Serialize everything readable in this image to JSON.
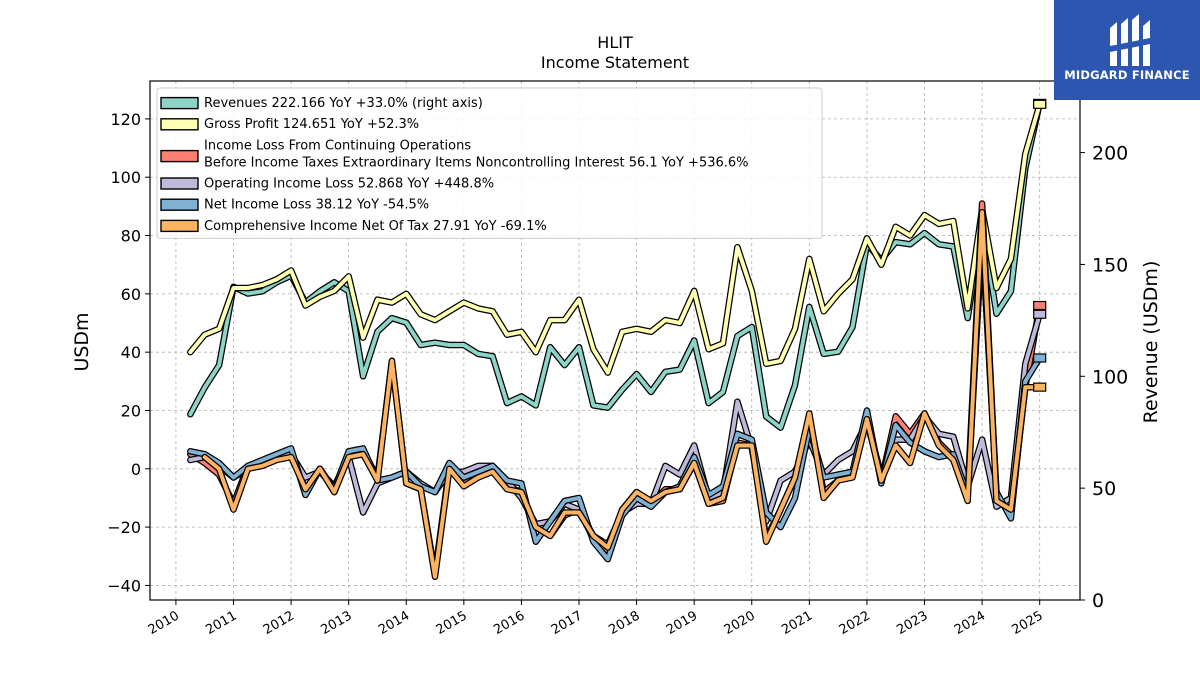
{
  "chart_data": {
    "type": "line",
    "title": "HLIT",
    "subtitle": "Income Statement",
    "ylabel_left": "USDm",
    "ylabel_right": "Revenue (USDm)",
    "ylim_left": [
      -45,
      133
    ],
    "ylim_right": [
      0,
      232
    ],
    "yticks_left": [
      -40,
      -20,
      0,
      20,
      40,
      60,
      80,
      100,
      120
    ],
    "yticks_right": [
      0,
      50,
      100,
      150,
      200
    ],
    "xlim": [
      2009.55,
      2025.7
    ],
    "xticks": [
      2010,
      2011,
      2012,
      2013,
      2014,
      2015,
      2016,
      2017,
      2018,
      2019,
      2020,
      2021,
      2022,
      2023,
      2024,
      2025
    ],
    "grid": true,
    "legend_position": "top-left",
    "series": [
      {
        "name": "Revenues",
        "legend_label": "Revenues  222.166 YoY +33.0% (right axis)",
        "axis": "right",
        "color": "#8dd3c7",
        "x": [
          2010.25,
          2010.5,
          2010.75,
          2011.0,
          2011.25,
          2011.5,
          2011.75,
          2012.0,
          2012.25,
          2012.5,
          2012.75,
          2013.0,
          2013.25,
          2013.5,
          2013.75,
          2014.0,
          2014.25,
          2014.5,
          2014.75,
          2015.0,
          2015.25,
          2015.5,
          2015.75,
          2016.0,
          2016.25,
          2016.5,
          2016.75,
          2017.0,
          2017.25,
          2017.5,
          2017.75,
          2018.0,
          2018.25,
          2018.5,
          2018.75,
          2019.0,
          2019.25,
          2019.5,
          2019.75,
          2020.0,
          2020.25,
          2020.5,
          2020.75,
          2021.0,
          2021.25,
          2021.5,
          2021.75,
          2022.0,
          2022.25,
          2022.5,
          2022.75,
          2023.0,
          2023.25,
          2023.5,
          2023.75,
          2024.0,
          2024.25,
          2024.5,
          2024.75,
          2025.0
        ],
        "values": [
          83,
          95,
          105,
          140,
          137,
          138,
          142,
          145,
          133,
          138,
          142,
          138,
          100,
          120,
          126,
          124,
          114,
          115,
          114,
          114,
          110,
          109,
          88,
          91,
          87,
          113,
          105,
          113,
          87,
          86,
          94,
          101,
          93,
          102,
          103,
          116,
          88,
          93,
          118,
          122,
          82,
          77,
          96,
          131,
          110,
          111,
          122,
          159,
          152,
          160,
          159,
          164,
          159,
          158,
          126,
          168,
          128,
          138,
          193,
          222
        ]
      },
      {
        "name": "Gross Profit",
        "legend_label": "Gross Profit  124.651 YoY +52.3%",
        "axis": "left",
        "color": "#ffffb3",
        "x": [
          2010.25,
          2010.5,
          2010.75,
          2011.0,
          2011.25,
          2011.5,
          2011.75,
          2012.0,
          2012.25,
          2012.5,
          2012.75,
          2013.0,
          2013.25,
          2013.5,
          2013.75,
          2014.0,
          2014.25,
          2014.5,
          2014.75,
          2015.0,
          2015.25,
          2015.5,
          2015.75,
          2016.0,
          2016.25,
          2016.5,
          2016.75,
          2017.0,
          2017.25,
          2017.5,
          2017.75,
          2018.0,
          2018.25,
          2018.5,
          2018.75,
          2019.0,
          2019.25,
          2019.5,
          2019.75,
          2020.0,
          2020.25,
          2020.5,
          2020.75,
          2021.0,
          2021.25,
          2021.5,
          2021.75,
          2022.0,
          2022.25,
          2022.5,
          2022.75,
          2023.0,
          2023.25,
          2023.5,
          2023.75,
          2024.0,
          2024.25,
          2024.5,
          2024.75,
          2025.0
        ],
        "values": [
          40,
          46,
          48,
          62,
          62,
          63,
          65,
          68,
          56,
          59,
          61,
          66,
          45,
          58,
          57,
          60,
          53,
          51,
          54,
          57,
          55,
          54,
          46,
          47,
          40,
          51,
          51,
          58,
          41,
          33,
          47,
          48,
          47,
          51,
          50,
          61,
          41,
          43,
          76,
          61,
          36,
          37,
          48,
          72,
          54,
          60,
          65,
          79,
          70,
          83,
          80,
          87,
          84,
          85,
          55,
          89,
          62,
          72,
          108,
          125
        ]
      },
      {
        "name": "Income Loss From Continuing Operations Before Income Taxes Extraordinary Items Noncontrolling Interest",
        "legend_label": "Income Loss From Continuing Operations\nBefore Income Taxes Extraordinary Items Noncontrolling Interest  56.1 YoY +536.6%",
        "axis": "left",
        "color": "#fb8072",
        "x": [
          2010.25,
          2010.5,
          2010.75,
          2011.0,
          2011.25,
          2011.5,
          2011.75,
          2012.0,
          2012.25,
          2012.5,
          2012.75,
          2013.0,
          2013.25,
          2013.5,
          2013.75,
          2014.0,
          2014.25,
          2014.5,
          2014.75,
          2015.0,
          2015.25,
          2015.5,
          2015.75,
          2016.0,
          2016.25,
          2016.5,
          2016.75,
          2017.0,
          2017.25,
          2017.5,
          2017.75,
          2018.0,
          2018.25,
          2018.5,
          2018.75,
          2019.0,
          2019.25,
          2019.5,
          2019.75,
          2020.0,
          2020.25,
          2020.5,
          2020.75,
          2021.0,
          2021.25,
          2021.5,
          2021.75,
          2022.0,
          2022.25,
          2022.5,
          2022.75,
          2023.0,
          2023.25,
          2023.5,
          2023.75,
          2024.0,
          2024.25,
          2024.5,
          2024.75,
          2025.0
        ],
        "values": [
          5,
          2,
          -2,
          -12,
          1,
          2,
          3,
          5,
          -7,
          0,
          -8,
          5,
          6,
          -3,
          37,
          -5,
          -7,
          -36,
          1,
          -5,
          -3,
          0,
          -6,
          -8,
          -20,
          -23,
          -16,
          -14,
          -24,
          -28,
          -14,
          -8,
          -12,
          -7,
          -7,
          2,
          -12,
          -11,
          9,
          8,
          -24,
          -14,
          -3,
          18,
          -8,
          -4,
          -2,
          18,
          -4,
          18,
          12,
          19,
          9,
          4,
          -8,
          91,
          -10,
          -15,
          28,
          56
        ]
      },
      {
        "name": "Operating Income Loss",
        "legend_label": "Operating Income Loss  52.868 YoY +448.8%",
        "axis": "left",
        "color": "#bebada",
        "x": [
          2010.25,
          2010.5,
          2010.75,
          2011.0,
          2011.25,
          2011.5,
          2011.75,
          2012.0,
          2012.25,
          2012.5,
          2012.75,
          2013.0,
          2013.25,
          2013.5,
          2013.75,
          2014.0,
          2014.25,
          2014.5,
          2014.75,
          2015.0,
          2015.25,
          2015.5,
          2015.75,
          2016.0,
          2016.25,
          2016.5,
          2016.75,
          2017.0,
          2017.25,
          2017.5,
          2017.75,
          2018.0,
          2018.25,
          2018.5,
          2018.75,
          2019.0,
          2019.25,
          2019.5,
          2019.75,
          2020.0,
          2020.25,
          2020.5,
          2020.75,
          2021.0,
          2021.25,
          2021.5,
          2021.75,
          2022.0,
          2022.25,
          2022.5,
          2022.75,
          2023.0,
          2023.25,
          2023.5,
          2023.75,
          2024.0,
          2024.25,
          2024.5,
          2024.75,
          2025.0
        ],
        "values": [
          3,
          4,
          1,
          -3,
          0,
          2,
          4,
          5,
          -3,
          -1,
          -6,
          4,
          -15,
          -5,
          -3,
          -1,
          -5,
          -8,
          -1,
          -1,
          1,
          1,
          -4,
          -10,
          -19,
          -18,
          -12,
          -14,
          -23,
          -26,
          -15,
          -12,
          -12,
          1,
          -2,
          8,
          -10,
          -8,
          23,
          7,
          -18,
          -4,
          -1,
          10,
          -2,
          3,
          6,
          16,
          -2,
          10,
          10,
          18,
          12,
          11,
          -6,
          10,
          -13,
          -10,
          36,
          53
        ]
      },
      {
        "name": "Net Income Loss",
        "legend_label": "Net Income Loss  38.12 YoY -54.5%",
        "axis": "left",
        "color": "#80b1d3",
        "x": [
          2010.25,
          2010.5,
          2010.75,
          2011.0,
          2011.25,
          2011.5,
          2011.75,
          2012.0,
          2012.25,
          2012.5,
          2012.75,
          2013.0,
          2013.25,
          2013.5,
          2013.75,
          2014.0,
          2014.25,
          2014.5,
          2014.75,
          2015.0,
          2015.25,
          2015.5,
          2015.75,
          2016.0,
          2016.25,
          2016.5,
          2016.75,
          2017.0,
          2017.25,
          2017.5,
          2017.75,
          2018.0,
          2018.25,
          2018.5,
          2018.75,
          2019.0,
          2019.25,
          2019.5,
          2019.75,
          2020.0,
          2020.25,
          2020.5,
          2020.75,
          2021.0,
          2021.25,
          2021.5,
          2021.75,
          2022.0,
          2022.25,
          2022.5,
          2022.75,
          2023.0,
          2023.25,
          2023.5,
          2023.75,
          2024.0,
          2024.25,
          2024.5,
          2024.75,
          2025.0
        ],
        "values": [
          6,
          5,
          2,
          -3,
          1,
          3,
          5,
          7,
          -9,
          0,
          -7,
          6,
          7,
          -4,
          -3,
          -1,
          -6,
          -8,
          2,
          -3,
          -1,
          1,
          -4,
          -5,
          -25,
          -18,
          -11,
          -10,
          -25,
          -31,
          -16,
          -10,
          -13,
          -8,
          -6,
          4,
          -9,
          -6,
          12,
          10,
          -15,
          -20,
          -10,
          14,
          -3,
          -2,
          -1,
          20,
          -5,
          15,
          9,
          6,
          4,
          5,
          -9,
          80,
          -8,
          -17,
          30,
          38
        ]
      },
      {
        "name": "Comprehensive Income Net Of Tax",
        "legend_label": "Comprehensive Income Net Of Tax  27.91 YoY -69.1%",
        "axis": "left",
        "color": "#fdb462",
        "x": [
          2010.25,
          2010.5,
          2010.75,
          2011.0,
          2011.25,
          2011.5,
          2011.75,
          2012.0,
          2012.25,
          2012.5,
          2012.75,
          2013.0,
          2013.25,
          2013.5,
          2013.75,
          2014.0,
          2014.25,
          2014.5,
          2014.75,
          2015.0,
          2015.25,
          2015.5,
          2015.75,
          2016.0,
          2016.25,
          2016.5,
          2016.75,
          2017.0,
          2017.25,
          2017.5,
          2017.75,
          2018.0,
          2018.25,
          2018.5,
          2018.75,
          2019.0,
          2019.25,
          2019.5,
          2019.75,
          2020.0,
          2020.25,
          2020.5,
          2020.75,
          2021.0,
          2021.25,
          2021.5,
          2021.75,
          2022.0,
          2022.25,
          2022.5,
          2022.75,
          2023.0,
          2023.25,
          2023.5,
          2023.75,
          2024.0,
          2024.25,
          2024.5,
          2024.75,
          2025.0
        ],
        "values": [
          null,
          4,
          0,
          -14,
          0,
          1,
          3,
          4,
          -7,
          0,
          -8,
          4,
          5,
          -4,
          37,
          -5,
          -7,
          -37,
          0,
          -6,
          -3,
          -1,
          -7,
          -8,
          -20,
          -23,
          -15,
          -15,
          -23,
          -27,
          -14,
          -8,
          -11,
          -8,
          -7,
          2,
          -12,
          -10,
          8,
          8,
          -25,
          -14,
          -3,
          19,
          -10,
          -4,
          -3,
          17,
          -4,
          8,
          2,
          19,
          8,
          3,
          -11,
          88,
          -11,
          -14,
          28,
          28
        ]
      }
    ]
  },
  "logo": {
    "brand": "MIDGARD FINANCE"
  }
}
